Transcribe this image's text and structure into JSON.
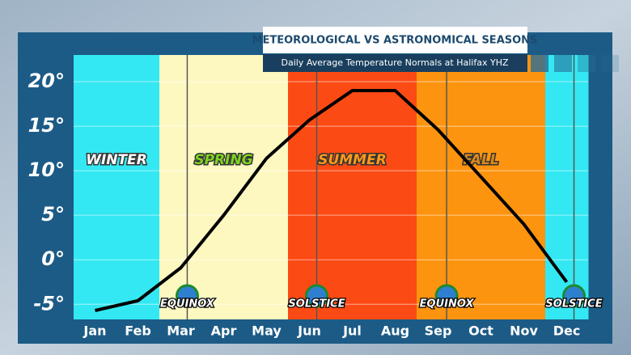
{
  "chart_data": {
    "type": "line",
    "title": "METEOROLOGICAL VS ASTRONOMICAL SEASONS",
    "subtitle": "Daily Average Temperature Normals at Halifax YHZ",
    "categories": [
      "Jan",
      "Feb",
      "Mar",
      "Apr",
      "May",
      "Jun",
      "Jul",
      "Aug",
      "Sep",
      "Oct",
      "Nov",
      "Dec"
    ],
    "series": [
      {
        "color": "#000000",
        "values": [
          -5.7,
          -4.6,
          -0.9,
          5,
          11.4,
          15.7,
          19,
          19,
          14.6,
          9.3,
          4,
          -2.5
        ]
      }
    ],
    "category_colors": [
      "#33e8f2",
      "#33e8f2",
      "#fdf8c0",
      "#fdf8c0",
      "#fdf8c0",
      "#fc4a14",
      "#fc4a14",
      "#fc4a14",
      "#fd9410",
      "#fd9410",
      "#fd9410",
      "#33e8f2"
    ],
    "seasons": [
      "WINTER",
      "SPRING",
      "SUMMER",
      "FALL"
    ],
    "season_colors": [
      "#ffffff",
      "#7ed321",
      "#ff9a1a",
      "#d98a1c"
    ],
    "xlim": [
      0,
      12
    ],
    "events": [
      {
        "label": "EQUINOX",
        "x": 2.65
      },
      {
        "label": "SOLSTICE",
        "x": 5.67
      },
      {
        "label": "EQUINOX",
        "x": 8.7
      },
      {
        "label": "SOLSTICE",
        "x": 11.67
      }
    ],
    "ylim": [
      -6.7,
      23
    ],
    "yticks": [
      {
        "value": -5,
        "label": "-5°"
      },
      {
        "value": 0,
        "label": "0°"
      },
      {
        "value": 5,
        "label": "5°"
      },
      {
        "value": 10,
        "label": "10°"
      },
      {
        "value": 15,
        "label": "15°"
      },
      {
        "value": 20,
        "label": "20°"
      }
    ],
    "grid": true
  }
}
